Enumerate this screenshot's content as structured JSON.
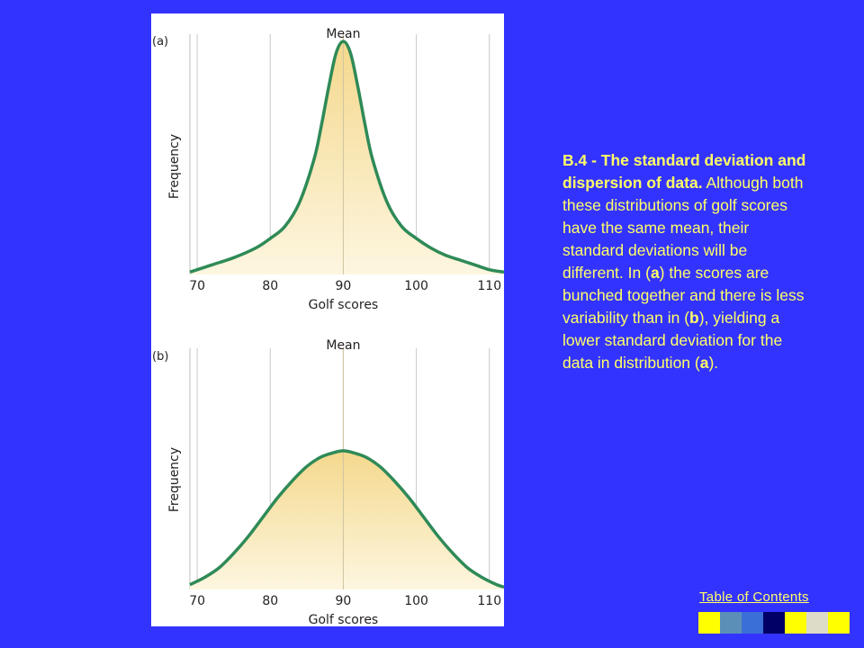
{
  "caption": {
    "heading": "B.4 - The standard deviation and dispersion of data.",
    "parts": [
      {
        "text": " Although both these distributions of golf scores have the same mean, their standard deviations will be different. In (",
        "bold": false
      },
      {
        "text": "a",
        "bold": true
      },
      {
        "text": ") the scores are bunched together and there is less variability than in (",
        "bold": false
      },
      {
        "text": "b",
        "bold": true
      },
      {
        "text": "), yielding a lower standard deviation for the data in distribution (",
        "bold": false
      },
      {
        "text": "a",
        "bold": true
      },
      {
        "text": ").",
        "bold": false
      }
    ]
  },
  "nav": {
    "toc_label": "Table of Contents",
    "blocks": [
      "#ffff00",
      "#5b8fb8",
      "#3b6fd8",
      "#000066",
      "#ffff00",
      "#dcdcc8",
      "#ffff00"
    ]
  },
  "colors": {
    "background": "#3333ff",
    "curve": "#2e8a57",
    "fill_top": "#f4d88c",
    "fill_bottom": "#fdf6e0",
    "gridline": "#c8c8c8",
    "caption_text": "#ffff66"
  },
  "chart_data": [
    {
      "type": "area",
      "panel_label": "(a)",
      "title": "Mean",
      "xlabel": "Golf scores",
      "ylabel": "Frequency",
      "xticks": [
        70,
        80,
        90,
        100,
        110
      ],
      "xlim": [
        69,
        112
      ],
      "ylim": [
        0,
        1
      ],
      "grid": "vertical",
      "x": [
        69,
        72,
        75,
        78,
        80,
        82,
        84,
        86,
        87,
        88,
        89,
        90,
        91,
        92,
        93,
        94,
        96,
        98,
        100,
        102,
        104,
        106,
        108,
        110,
        112
      ],
      "y": [
        0.01,
        0.04,
        0.07,
        0.11,
        0.15,
        0.2,
        0.3,
        0.48,
        0.62,
        0.78,
        0.92,
        0.97,
        0.92,
        0.78,
        0.62,
        0.48,
        0.3,
        0.2,
        0.15,
        0.11,
        0.08,
        0.06,
        0.04,
        0.02,
        0.01
      ]
    },
    {
      "type": "area",
      "panel_label": "(b)",
      "title": "Mean",
      "xlabel": "Golf scores",
      "ylabel": "Frequency",
      "xticks": [
        70,
        80,
        90,
        100,
        110
      ],
      "xlim": [
        69,
        112
      ],
      "ylim": [
        0,
        1
      ],
      "grid": "vertical",
      "x": [
        69,
        71,
        73,
        75,
        77,
        79,
        81,
        83,
        85,
        87,
        89,
        90,
        91,
        93,
        95,
        97,
        99,
        101,
        103,
        105,
        107,
        109,
        111,
        112
      ],
      "y": [
        0.02,
        0.05,
        0.09,
        0.15,
        0.22,
        0.3,
        0.38,
        0.45,
        0.51,
        0.55,
        0.57,
        0.575,
        0.57,
        0.55,
        0.51,
        0.45,
        0.38,
        0.3,
        0.22,
        0.15,
        0.09,
        0.05,
        0.02,
        0.01
      ]
    }
  ]
}
